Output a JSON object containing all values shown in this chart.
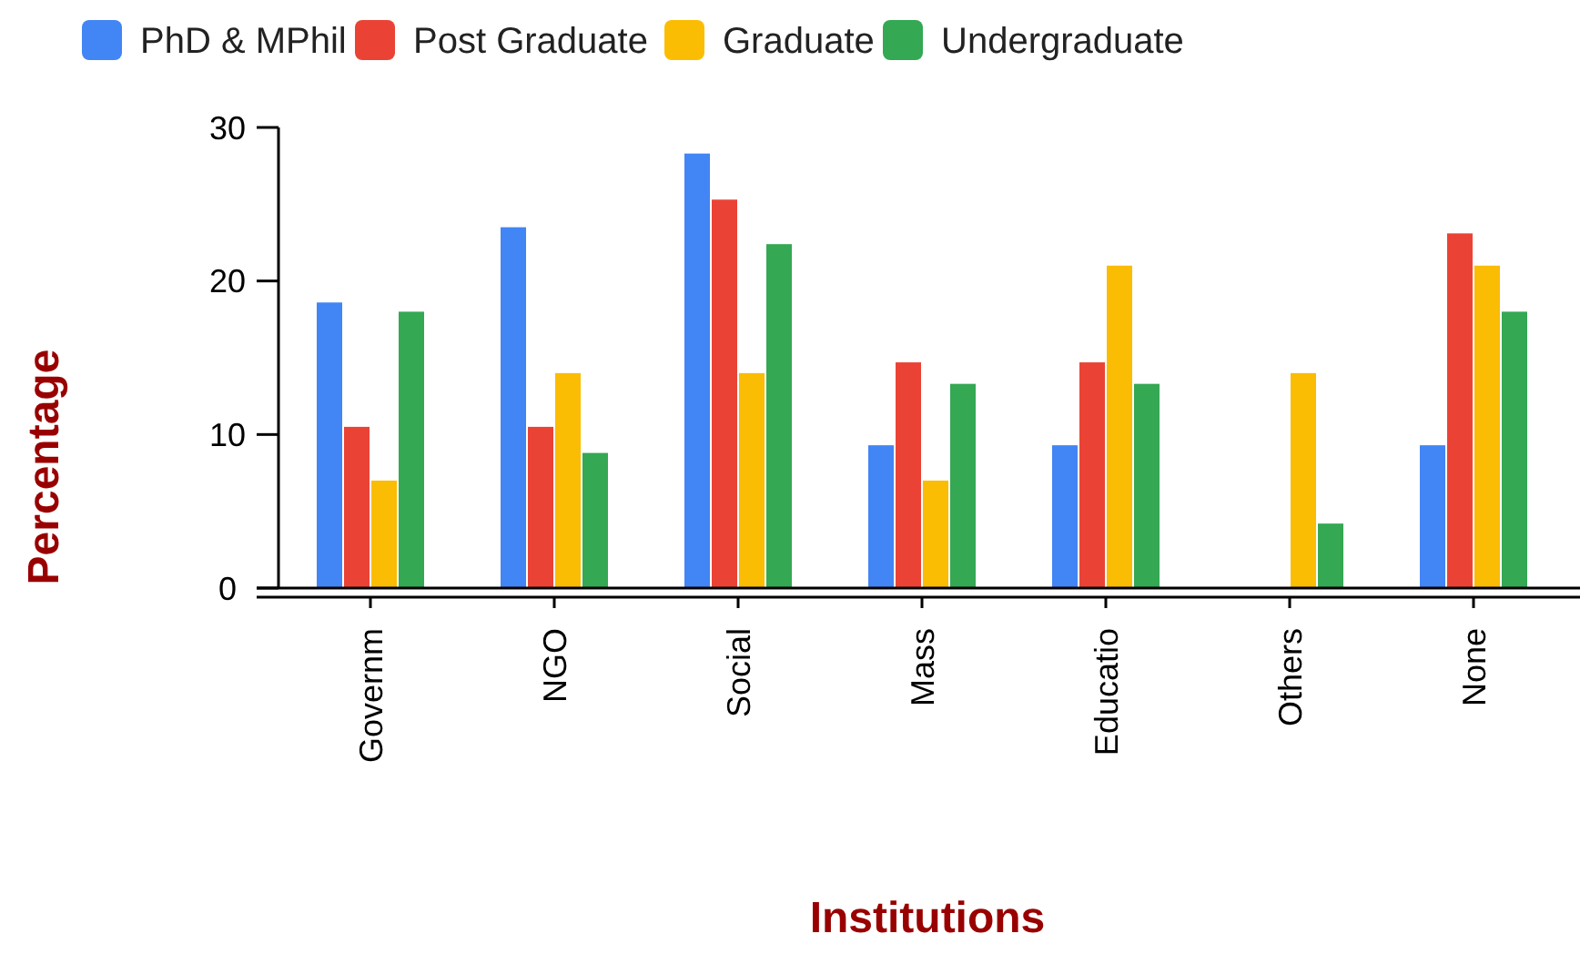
{
  "chart_data": {
    "type": "bar",
    "xlabel": "Institutions",
    "ylabel": "Percentage",
    "categories": [
      "Governm",
      "NGO",
      "Social",
      "Mass",
      "Educatio",
      "Others",
      "None"
    ],
    "series": [
      {
        "name": "PhD & MPhil",
        "color": "#4285f4",
        "values": [
          18.6,
          23.5,
          28.3,
          9.3,
          9.3,
          0,
          9.3
        ]
      },
      {
        "name": "Post Graduate",
        "color": "#ea4335",
        "values": [
          10.5,
          10.5,
          25.3,
          14.7,
          14.7,
          0,
          23.1
        ]
      },
      {
        "name": "Graduate",
        "color": "#fbbc04",
        "values": [
          7,
          14,
          14,
          7,
          21,
          14,
          21
        ]
      },
      {
        "name": "Undergraduate",
        "color": "#34a853",
        "values": [
          18,
          8.8,
          22.4,
          13.3,
          13.3,
          4.2,
          18
        ]
      }
    ],
    "ylim": [
      0,
      30
    ],
    "yticks": [
      0,
      10,
      20,
      30
    ],
    "legend": "top",
    "grid": false
  }
}
